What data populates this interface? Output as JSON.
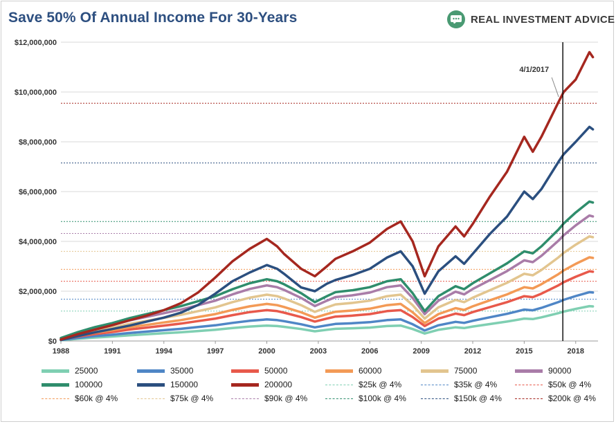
{
  "page": {
    "title": "Save 50% Of Annual Income For 30-Years",
    "brand": "REAL INVESTMENT ADVICE",
    "brand_icon": "chat-bubble-icon",
    "brand_color": "#4a9a73",
    "title_color": "#2d4f80"
  },
  "chart_data": {
    "type": "line",
    "title": "Save 50% Of Annual Income For 30-Years",
    "xlabel": "",
    "ylabel": "",
    "xlim": [
      1988,
      2019.3
    ],
    "ylim": [
      0,
      12000000
    ],
    "grid": true,
    "legend_position": "bottom",
    "x_ticks": [
      {
        "value": 1988,
        "label": "1988"
      },
      {
        "value": 1991,
        "label": "1991"
      },
      {
        "value": 1994,
        "label": "1994"
      },
      {
        "value": 1997,
        "label": "1997"
      },
      {
        "value": 2000,
        "label": "2000"
      },
      {
        "value": 2003,
        "label": "2003"
      },
      {
        "value": 2006,
        "label": "2006"
      },
      {
        "value": 2009,
        "label": "2009"
      },
      {
        "value": 2012,
        "label": "2012"
      },
      {
        "value": 2015,
        "label": "2015"
      },
      {
        "value": 2018,
        "label": "2018"
      }
    ],
    "y_ticks": [
      {
        "value": 0,
        "label": "$0"
      },
      {
        "value": 2000000,
        "label": "$2,000,000"
      },
      {
        "value": 4000000,
        "label": "$4,000,000"
      },
      {
        "value": 6000000,
        "label": "$6,000,000"
      },
      {
        "value": 8000000,
        "label": "$8,000,000"
      },
      {
        "value": 10000000,
        "label": "$10,000,000"
      },
      {
        "value": 12000000,
        "label": "$12,000,000"
      }
    ],
    "x": [
      1988,
      1989,
      1990,
      1991,
      1992,
      1993,
      1994,
      1995,
      1996,
      1997,
      1998,
      1999,
      2000,
      2000.6,
      2001,
      2002,
      2002.8,
      2003.5,
      2004,
      2005,
      2006,
      2007,
      2007.8,
      2008.5,
      2009.2,
      2010,
      2011,
      2011.5,
      2012,
      2013,
      2014,
      2014.5,
      2015,
      2015.5,
      2016,
      2017,
      2017.3,
      2018,
      2018.8,
      2019
    ],
    "series": [
      {
        "name": "25000",
        "color": "#7fcfb2",
        "values": [
          30000,
          90000,
          140000,
          180000,
          230000,
          270000,
          310000,
          350000,
          400000,
          450000,
          520000,
          580000,
          620000,
          600000,
          570000,
          480000,
          390000,
          450000,
          490000,
          510000,
          540000,
          600000,
          620000,
          480000,
          300000,
          450000,
          550000,
          520000,
          580000,
          680000,
          780000,
          840000,
          900000,
          880000,
          950000,
          1120000,
          1180000,
          1290000,
          1400000,
          1390000
        ]
      },
      {
        "name": "35000",
        "color": "#4f86c6",
        "values": [
          42000,
          126000,
          196000,
          252000,
          322000,
          378000,
          434000,
          490000,
          560000,
          630000,
          728000,
          812000,
          868000,
          840000,
          798000,
          672000,
          546000,
          630000,
          686000,
          714000,
          756000,
          840000,
          868000,
          672000,
          420000,
          630000,
          770000,
          728000,
          812000,
          952000,
          1092000,
          1176000,
          1260000,
          1232000,
          1330000,
          1568000,
          1652000,
          1806000,
          1960000,
          1946000
        ]
      },
      {
        "name": "50000",
        "color": "#e8594b",
        "values": [
          60000,
          180000,
          280000,
          360000,
          460000,
          540000,
          620000,
          700000,
          800000,
          900000,
          1040000,
          1160000,
          1240000,
          1200000,
          1140000,
          960000,
          780000,
          900000,
          980000,
          1020000,
          1080000,
          1200000,
          1240000,
          960000,
          600000,
          900000,
          1100000,
          1040000,
          1160000,
          1360000,
          1560000,
          1680000,
          1800000,
          1760000,
          1900000,
          2240000,
          2360000,
          2580000,
          2800000,
          2780000
        ]
      },
      {
        "name": "60000",
        "color": "#f39a56",
        "values": [
          72000,
          216000,
          336000,
          432000,
          552000,
          648000,
          744000,
          840000,
          960000,
          1080000,
          1248000,
          1392000,
          1488000,
          1440000,
          1368000,
          1152000,
          936000,
          1080000,
          1176000,
          1224000,
          1296000,
          1440000,
          1488000,
          1152000,
          720000,
          1080000,
          1320000,
          1248000,
          1392000,
          1632000,
          1872000,
          2016000,
          2160000,
          2112000,
          2280000,
          2688000,
          2832000,
          3096000,
          3360000,
          3336000
        ]
      },
      {
        "name": "75000",
        "color": "#e2c58f",
        "values": [
          90000,
          270000,
          420000,
          540000,
          690000,
          810000,
          930000,
          1050000,
          1200000,
          1350000,
          1560000,
          1740000,
          1860000,
          1800000,
          1710000,
          1440000,
          1170000,
          1350000,
          1470000,
          1530000,
          1620000,
          1800000,
          1860000,
          1440000,
          900000,
          1350000,
          1650000,
          1560000,
          1740000,
          2040000,
          2340000,
          2520000,
          2700000,
          2640000,
          2850000,
          3360000,
          3540000,
          3870000,
          4200000,
          4170000
        ]
      },
      {
        "name": "90000",
        "color": "#a97ca8",
        "values": [
          108000,
          324000,
          504000,
          648000,
          828000,
          972000,
          1116000,
          1260000,
          1440000,
          1620000,
          1872000,
          2088000,
          2232000,
          2160000,
          2052000,
          1728000,
          1404000,
          1620000,
          1764000,
          1836000,
          1944000,
          2160000,
          2232000,
          1728000,
          1080000,
          1620000,
          1980000,
          1872000,
          2088000,
          2448000,
          2808000,
          3024000,
          3240000,
          3168000,
          3420000,
          4032000,
          4248000,
          4644000,
          5040000,
          5004000
        ]
      },
      {
        "name": "100000",
        "color": "#2f8d6c",
        "values": [
          120000,
          360000,
          560000,
          720000,
          920000,
          1080000,
          1240000,
          1400000,
          1600000,
          1800000,
          2080000,
          2320000,
          2480000,
          2400000,
          2280000,
          1920000,
          1560000,
          1800000,
          1960000,
          2040000,
          2160000,
          2400000,
          2480000,
          1920000,
          1200000,
          1800000,
          2200000,
          2080000,
          2320000,
          2720000,
          3120000,
          3360000,
          3600000,
          3520000,
          3800000,
          4480000,
          4720000,
          5160000,
          5600000,
          5560000
        ]
      },
      {
        "name": "150000",
        "color": "#2b4f7f",
        "values": [
          40000,
          200000,
          350000,
          480000,
          620000,
          780000,
          940000,
          1140000,
          1450000,
          1900000,
          2400000,
          2750000,
          3050000,
          2900000,
          2700000,
          2150000,
          2000000,
          2300000,
          2450000,
          2650000,
          2900000,
          3350000,
          3600000,
          3000000,
          1900000,
          2800000,
          3400000,
          3100000,
          3500000,
          4300000,
          5000000,
          5500000,
          6000000,
          5700000,
          6100000,
          7200000,
          7500000,
          8000000,
          8600000,
          8500000
        ]
      },
      {
        "name": "200000",
        "color": "#a5271f",
        "values": [
          60000,
          280000,
          460000,
          640000,
          830000,
          1020000,
          1240000,
          1520000,
          1950000,
          2550000,
          3200000,
          3700000,
          4100000,
          3800000,
          3500000,
          2900000,
          2600000,
          3000000,
          3300000,
          3600000,
          3950000,
          4500000,
          4800000,
          4000000,
          2600000,
          3800000,
          4600000,
          4200000,
          4700000,
          5800000,
          6800000,
          7500000,
          8200000,
          7600000,
          8200000,
          9600000,
          10000000,
          10500000,
          11600000,
          11400000
        ]
      }
    ],
    "reference_lines": [
      {
        "name": "$25k @ 4%",
        "value": 1200000,
        "color": "#7fcfb2"
      },
      {
        "name": "$35k @ 4%",
        "value": 1680000,
        "color": "#4f86c6"
      },
      {
        "name": "$50k @ 4%",
        "value": 2400000,
        "color": "#e8594b"
      },
      {
        "name": "$60k @ 4%",
        "value": 2880000,
        "color": "#f39a56"
      },
      {
        "name": "$75k @ 4%",
        "value": 3600000,
        "color": "#e2c58f"
      },
      {
        "name": "$90k @ 4%",
        "value": 4320000,
        "color": "#a97ca8"
      },
      {
        "name": "$100k @ 4%",
        "value": 4800000,
        "color": "#2f8d6c"
      },
      {
        "name": "$150k @ 4%",
        "value": 7150000,
        "color": "#2b4f7f"
      },
      {
        "name": "$200k @ 4%",
        "value": 9550000,
        "color": "#a5271f"
      }
    ],
    "annotation": {
      "label": "4/1/2017",
      "x": 2017.25
    }
  }
}
